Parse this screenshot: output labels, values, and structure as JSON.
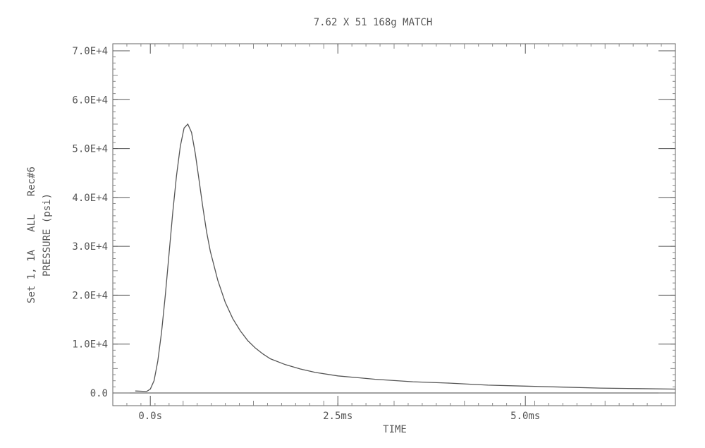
{
  "chart_data": {
    "type": "line",
    "title": "7.62 X 51 168g MATCH",
    "xlabel": "TIME",
    "ylabel_lines": [
      "Set 1, 1A   ALL   Rec#6",
      "PRESSURE (psi)"
    ],
    "x_unit": "ms",
    "xlim": [
      -0.5,
      7.0
    ],
    "ylim": [
      0,
      70000
    ],
    "x_ticks": [
      {
        "value": 0.0,
        "label": "0.0s"
      },
      {
        "value": 2.5,
        "label": "2.5ms"
      },
      {
        "value": 5.0,
        "label": "5.0ms"
      }
    ],
    "y_ticks": [
      {
        "value": 0,
        "label": "0.0"
      },
      {
        "value": 10000,
        "label": "1.0E+4"
      },
      {
        "value": 20000,
        "label": "2.0E+4"
      },
      {
        "value": 30000,
        "label": "3.0E+4"
      },
      {
        "value": 40000,
        "label": "4.0E+4"
      },
      {
        "value": 50000,
        "label": "5.0E+4"
      },
      {
        "value": 60000,
        "label": "6.0E+4"
      },
      {
        "value": 70000,
        "label": "7.0E+4"
      }
    ],
    "grid": false,
    "series": [
      {
        "x": [
          -0.2,
          -0.05,
          0.0,
          0.05,
          0.1,
          0.15,
          0.2,
          0.25,
          0.3,
          0.35,
          0.4,
          0.45,
          0.5,
          0.55,
          0.6,
          0.65,
          0.7,
          0.75,
          0.8,
          0.9,
          1.0,
          1.1,
          1.2,
          1.3,
          1.4,
          1.5,
          1.6,
          1.8,
          2.0,
          2.2,
          2.5,
          3.0,
          3.5,
          4.0,
          4.5,
          5.0,
          5.5,
          6.0,
          6.5,
          7.0
        ],
        "y": [
          400,
          300,
          800,
          2500,
          6500,
          12500,
          20000,
          28500,
          37000,
          44500,
          50500,
          54200,
          55000,
          53300,
          49000,
          43500,
          38000,
          33000,
          29000,
          23000,
          18500,
          15200,
          12700,
          10700,
          9200,
          8000,
          7000,
          5800,
          4900,
          4200,
          3500,
          2800,
          2300,
          2000,
          1600,
          1400,
          1200,
          1000,
          900,
          800
        ]
      }
    ]
  }
}
